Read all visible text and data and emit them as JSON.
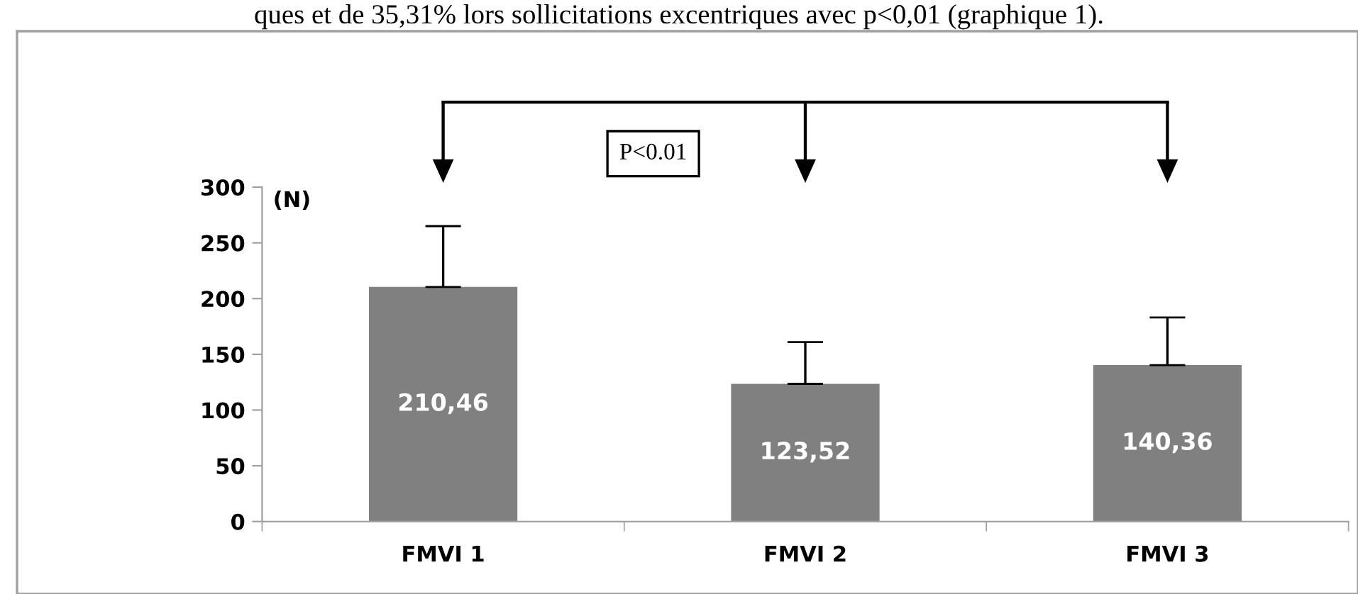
{
  "chart_data": {
    "type": "bar",
    "categories": [
      "FMVI 1",
      "FMVI 2",
      "FMVI 3"
    ],
    "values": [
      210.46,
      123.52,
      140.36
    ],
    "color": "#808080",
    "errors": [
      [
        210.46,
        265
      ],
      [
        123.52,
        161
      ],
      [
        140.36,
        183
      ]
    ],
    "value_labels": [
      "210,46",
      "123,52",
      "140,36"
    ],
    "ylabel": "(N)",
    "ylim": [
      0,
      300
    ],
    "yticks": [
      0,
      50,
      100,
      150,
      200,
      250,
      300
    ],
    "grid": false,
    "legend": false,
    "annotations": [
      "ques et de 35,31% lors sollicitations excentriques avec p<0,01 (graphique 1).",
      "P<0.01"
    ]
  }
}
